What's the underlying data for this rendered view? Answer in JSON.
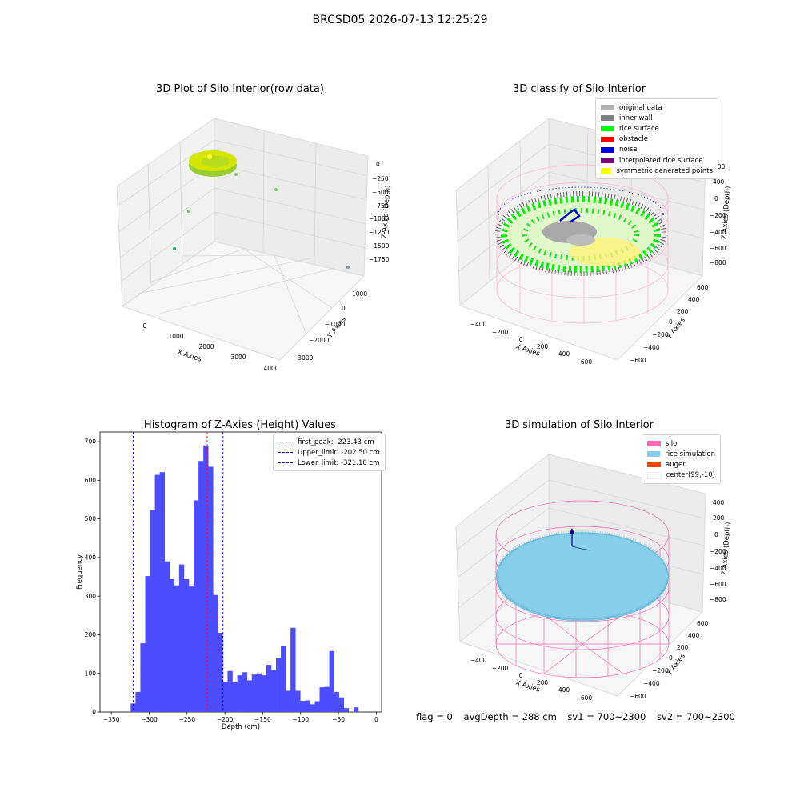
{
  "figure": {
    "title": "BRCSD05 2026-07-13 12:25:29"
  },
  "colors": {
    "hist_bar": "#4d4dff",
    "first_peak": "#ff0000",
    "limits": "#0000cc",
    "pane": "#f2f2f2",
    "silo_pink": "#ff69b4",
    "rice_blue": "#87ceeb",
    "rice_green": "#00ff00",
    "noise_blue": "#0000dd",
    "yellow": "#ffff00"
  },
  "plot1": {
    "title": "3D Plot of Silo Interior(row data)",
    "xlabel": "X Axies",
    "ylabel": "Y Axies",
    "zlabel": "Z Axies (Depth)",
    "xticks": [
      "0",
      "1000",
      "2000",
      "3000",
      "4000"
    ],
    "yticks": [
      "1000",
      "0",
      "−1000",
      "−2000",
      "−3000"
    ],
    "zticks": [
      "0",
      "−250",
      "−500",
      "−750",
      "−1000",
      "−1250",
      "−1500",
      "−1750"
    ]
  },
  "plot2": {
    "title": "3D classify of Silo Interior",
    "xlabel": "X Axies",
    "ylabel": "Y Axies",
    "zlabel": "Z Axies (Depth)",
    "xticks": [
      "−400",
      "−200",
      "0",
      "200",
      "400",
      "600"
    ],
    "yticks": [
      "600",
      "400",
      "200",
      "0",
      "−200",
      "−400",
      "−600"
    ],
    "zticks": [
      "200",
      "0",
      "−200",
      "−400",
      "−600",
      "−800"
    ],
    "zticks_top": [
      "400"
    ],
    "legend": [
      {
        "label": "original data",
        "color": "#b0b0b0"
      },
      {
        "label": "inner wall",
        "color": "#808080"
      },
      {
        "label": "rice surface",
        "color": "#00ff00"
      },
      {
        "label": "obstacle",
        "color": "#ff0000"
      },
      {
        "label": "noise",
        "color": "#0000dd"
      },
      {
        "label": "interpolated rice surface",
        "color": "#800080"
      },
      {
        "label": "symmetric generated points",
        "color": "#ffff00"
      }
    ]
  },
  "plot4": {
    "title": "3D simulation of Silo Interior",
    "xlabel": "X Axies",
    "ylabel": "Y Axies",
    "zlabel": "Z Axies (Depth)",
    "xticks": [
      "−400",
      "−200",
      "0",
      "200",
      "400",
      "600"
    ],
    "yticks": [
      "600",
      "400",
      "200",
      "0",
      "−200",
      "−400",
      "−600"
    ],
    "zticks": [
      "400",
      "200",
      "0",
      "−200",
      "−400",
      "−600",
      "−800"
    ],
    "legend": [
      {
        "label": "silo",
        "color": "#ff69b4"
      },
      {
        "label": "rice simulation",
        "color": "#87ceeb"
      },
      {
        "label": "auger",
        "color": "#ff4500"
      },
      {
        "label": "center(99,-10)",
        "color": "#ffffff"
      }
    ]
  },
  "status": {
    "flag": "flag = 0",
    "avg_depth": "avgDepth = 288 cm",
    "sv1": "sv1 = 700~2300",
    "sv2": "sv2 = 700~2300"
  },
  "chart_data": {
    "type": "bar",
    "title": "Histogram of Z-Axies (Height) Values",
    "xlabel": "Depth (cm)",
    "ylabel": "Frequency",
    "xlim": [
      -365,
      7
    ],
    "ylim": [
      0,
      725
    ],
    "xticks": [
      -350,
      -300,
      -250,
      -200,
      -150,
      -100,
      -50,
      0
    ],
    "yticks": [
      0,
      100,
      200,
      300,
      400,
      500,
      600,
      700
    ],
    "bin_start": -324.5,
    "bin_width": 6.4,
    "values": [
      22,
      52,
      178,
      352,
      523,
      614,
      621,
      390,
      344,
      328,
      382,
      344,
      327,
      548,
      650,
      690,
      635,
      303,
      205,
      78,
      106,
      77,
      95,
      103,
      82,
      97,
      100,
      95,
      122,
      108,
      140,
      170,
      55,
      218,
      55,
      29,
      30,
      20,
      28,
      64,
      65,
      158,
      52,
      38,
      10,
      0,
      12
    ],
    "vlines": [
      {
        "label": "first_peak: -223.43 cm",
        "x": -223.43,
        "color": "#ff0000"
      },
      {
        "label": "Upper_limit: -202.50 cm",
        "x": -202.5,
        "color": "#0000cc"
      },
      {
        "label": "Lower_limit: -321.10 cm",
        "x": -321.1,
        "color": "#0000cc"
      }
    ]
  }
}
